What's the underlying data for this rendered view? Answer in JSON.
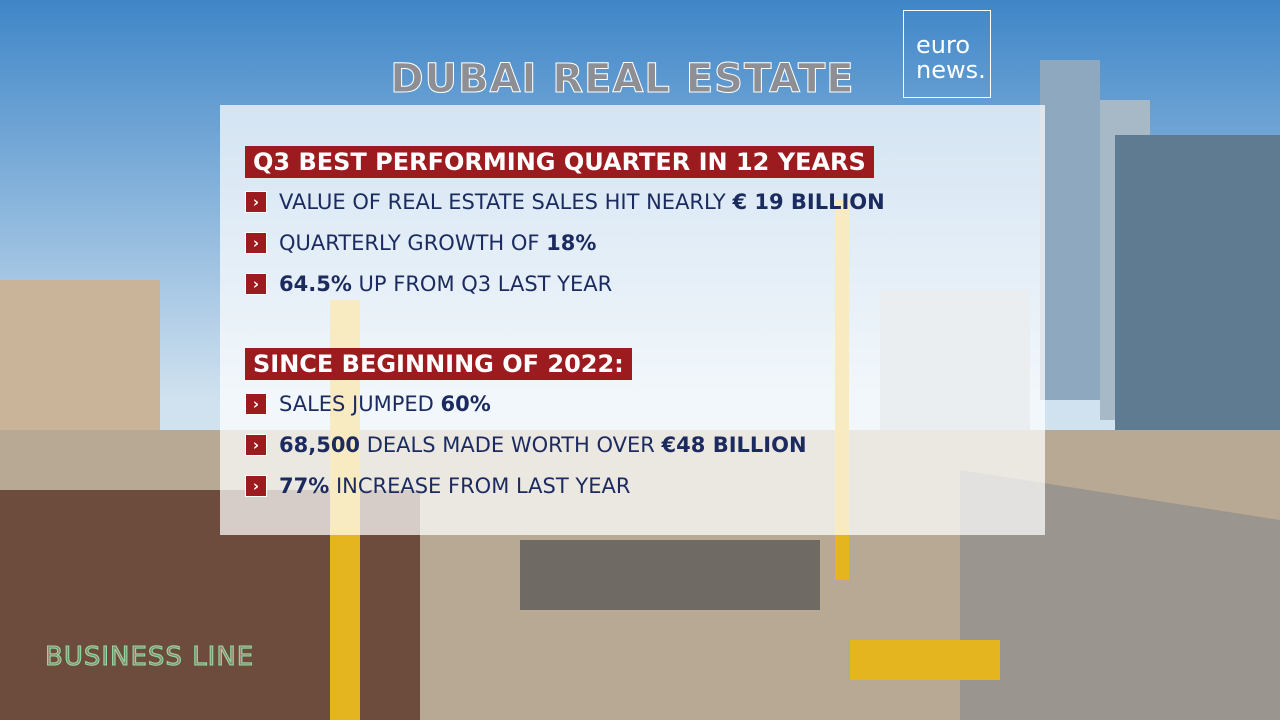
{
  "header": {
    "title": "DUBAI REAL ESTATE",
    "logo": [
      "euro",
      "news."
    ]
  },
  "sections": [
    {
      "heading": "Q3 BEST PERFORMING QUARTER IN 12 YEARS",
      "items": [
        [
          {
            "text": "VALUE OF REAL ESTATE SALES HIT NEARLY ",
            "strong": false
          },
          {
            "text": "€ 19 BILLION",
            "strong": true
          }
        ],
        [
          {
            "text": "QUARTERLY GROWTH OF ",
            "strong": false
          },
          {
            "text": "18%",
            "strong": true
          }
        ],
        [
          {
            "text": "64.5%",
            "strong": true
          },
          {
            "text": " UP FROM Q3 LAST YEAR",
            "strong": false
          }
        ]
      ]
    },
    {
      "heading": "SINCE BEGINNING OF 2022:",
      "items": [
        [
          {
            "text": "SALES JUMPED ",
            "strong": false
          },
          {
            "text": "60%",
            "strong": true
          }
        ],
        [
          {
            "text": "68,500",
            "strong": true
          },
          {
            "text": " DEALS MADE WORTH OVER ",
            "strong": false
          },
          {
            "text": "€48 BILLION",
            "strong": true
          }
        ],
        [
          {
            "text": "77%",
            "strong": true
          },
          {
            "text": " INCREASE FROM LAST YEAR",
            "strong": false
          }
        ]
      ]
    }
  ],
  "footer": {
    "programme": "BUSINESS LINE"
  }
}
